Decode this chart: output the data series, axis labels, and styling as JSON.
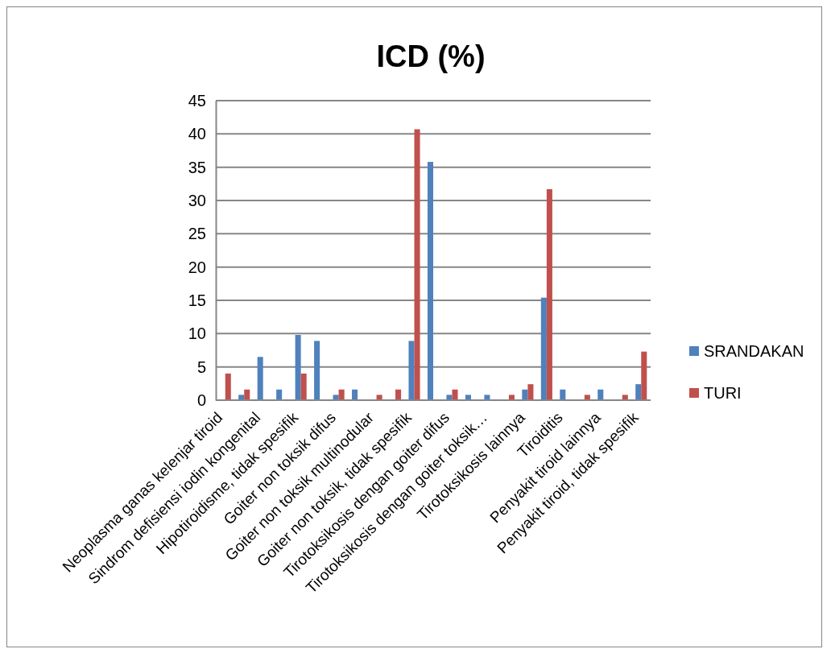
{
  "chart_data": {
    "type": "bar",
    "title": "ICD (%)",
    "categories": [
      "Neoplasma ganas kelenjar tiroid",
      null,
      "Sindrom defisiensi iodin kongenital",
      null,
      "Hipotiroidisme, tidak spesifik",
      null,
      "Goiter non toksik difus",
      null,
      "Goiter non toksik multinodular",
      null,
      "Goiter non toksik, tidak spesifik",
      null,
      "Tirotoksikosis dengan goiter difus",
      null,
      "Tirotoksikosis dengan goiter toksik…",
      null,
      "Tirotoksikosis lainnya",
      null,
      "Tiroiditis",
      null,
      "Penyakit tiroid lainnya",
      null,
      "Penyakit tiroid, tidak spesifik"
    ],
    "series": [
      {
        "name": "SRANDAKAN",
        "color": "#4f81bd",
        "values": [
          0,
          0.8,
          6.5,
          1.6,
          9.8,
          8.9,
          0.8,
          1.6,
          0,
          0,
          8.9,
          35.8,
          0.8,
          0.8,
          0.8,
          0,
          1.6,
          15.4,
          1.6,
          0,
          1.6,
          0,
          2.4
        ]
      },
      {
        "name": "TURI",
        "color": "#c0504d",
        "values": [
          4.0,
          1.6,
          0,
          0,
          4.0,
          0,
          1.6,
          0,
          0.8,
          1.6,
          40.7,
          0,
          1.6,
          0,
          0,
          0.8,
          2.4,
          31.7,
          0,
          0.8,
          0,
          0.8,
          7.3
        ]
      }
    ],
    "ylim": [
      0,
      45
    ],
    "yticks": [
      0,
      5,
      10,
      15,
      20,
      25,
      30,
      35,
      40,
      45
    ],
    "grid": "y",
    "legend": "right"
  }
}
